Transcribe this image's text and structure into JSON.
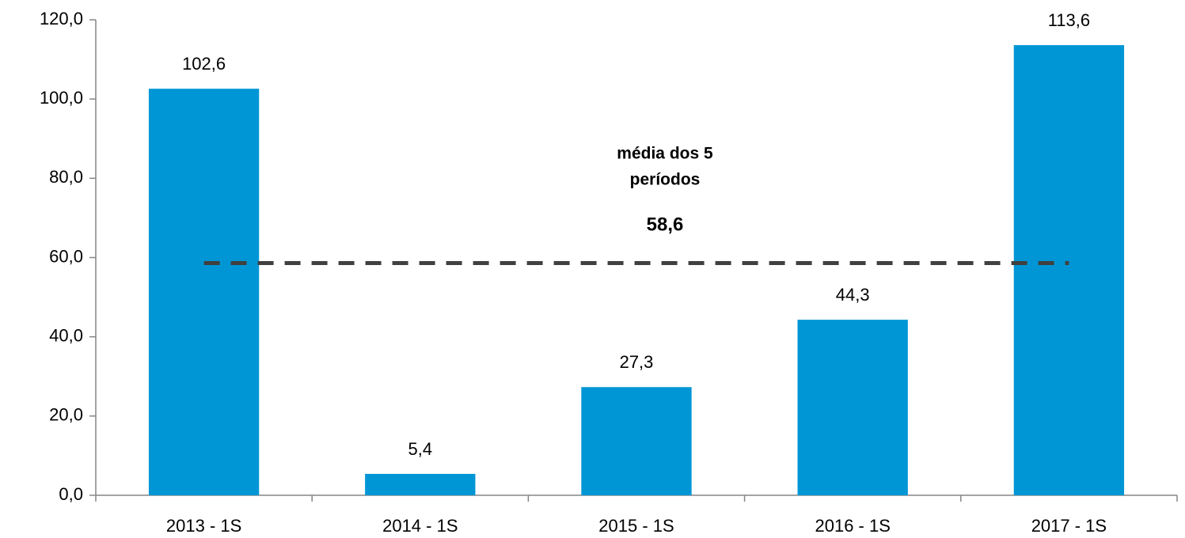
{
  "chart_data": {
    "type": "bar",
    "categories": [
      "2013 - 1S",
      "2014 - 1S",
      "2015 - 1S",
      "2016 - 1S",
      "2017 - 1S"
    ],
    "values": [
      102.6,
      5.4,
      27.3,
      44.3,
      113.6
    ],
    "value_labels": [
      "102,6",
      "5,4",
      "27,3",
      "44,3",
      "113,6"
    ],
    "color": "#0096d6",
    "ylim": [
      0,
      120
    ],
    "yticks": [
      {
        "value": 0,
        "label": "0,0"
      },
      {
        "value": 20,
        "label": "20,0"
      },
      {
        "value": 40,
        "label": "40,0"
      },
      {
        "value": 60,
        "label": "60,0"
      },
      {
        "value": 80,
        "label": "80,0"
      },
      {
        "value": 100,
        "label": "100,0"
      },
      {
        "value": 120,
        "label": "120,0"
      }
    ],
    "average": {
      "value": 58.6,
      "label": "58,6",
      "color": "#404040"
    },
    "annotation": [
      "média dos 5",
      "períodos"
    ]
  }
}
